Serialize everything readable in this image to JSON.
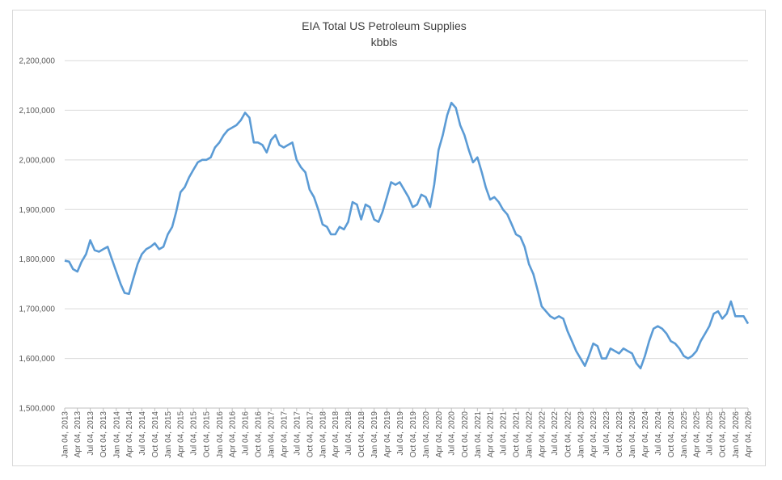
{
  "chart_data": {
    "type": "line",
    "title": "EIA Total US Petroleum Supplies",
    "subtitle": "kbbls",
    "x": [
      "Jan 04, 2013",
      "Feb 04, 2013",
      "Mar 04, 2013",
      "Apr 04, 2013",
      "May 04, 2013",
      "Jun 04, 2013",
      "Jul 04, 2013",
      "Aug 04, 2013",
      "Sep 04, 2013",
      "Oct 04, 2013",
      "Nov 04, 2013",
      "Dec 04, 2013",
      "Jan 04, 2014",
      "Feb 04, 2014",
      "Mar 04, 2014",
      "Apr 04, 2014",
      "May 04, 2014",
      "Jun 04, 2014",
      "Jul 04, 2014",
      "Aug 04, 2014",
      "Sep 04, 2014",
      "Oct 04, 2014",
      "Nov 04, 2014",
      "Dec 04, 2014",
      "Jan 04, 2015",
      "Feb 04, 2015",
      "Mar 04, 2015",
      "Apr 04, 2015",
      "May 04, 2015",
      "Jun 04, 2015",
      "Jul 04, 2015",
      "Aug 04, 2015",
      "Sep 04, 2015",
      "Oct 04, 2015",
      "Nov 04, 2015",
      "Dec 04, 2015",
      "Jan 04, 2016",
      "Feb 04, 2016",
      "Mar 04, 2016",
      "Apr 04, 2016",
      "May 04, 2016",
      "Jun 04, 2016",
      "Jul 04, 2016",
      "Aug 04, 2016",
      "Sep 04, 2016",
      "Oct 04, 2016",
      "Nov 04, 2016",
      "Dec 04, 2016",
      "Jan 04, 2017",
      "Feb 04, 2017",
      "Mar 04, 2017",
      "Apr 04, 2017",
      "May 04, 2017",
      "Jun 04, 2017",
      "Jul 04, 2017",
      "Aug 04, 2017",
      "Sep 04, 2017",
      "Oct 04, 2017",
      "Nov 04, 2017",
      "Dec 04, 2017",
      "Jan 04, 2018",
      "Feb 04, 2018",
      "Mar 04, 2018",
      "Apr 04, 2018",
      "May 04, 2018",
      "Jun 04, 2018",
      "Jul 04, 2018",
      "Aug 04, 2018",
      "Sep 04, 2018",
      "Oct 04, 2018",
      "Nov 04, 2018",
      "Dec 04, 2018",
      "Jan 04, 2019",
      "Feb 04, 2019",
      "Mar 04, 2019",
      "Apr 04, 2019",
      "May 04, 2019",
      "Jun 04, 2019",
      "Jul 04, 2019",
      "Aug 04, 2019",
      "Sep 04, 2019",
      "Oct 04, 2019",
      "Nov 04, 2019",
      "Dec 04, 2019",
      "Jan 04, 2020",
      "Feb 04, 2020",
      "Mar 04, 2020",
      "Apr 04, 2020",
      "May 04, 2020",
      "Jun 04, 2020",
      "Jul 04, 2020",
      "Aug 04, 2020",
      "Sep 04, 2020",
      "Oct 04, 2020",
      "Nov 04, 2020",
      "Dec 04, 2020",
      "Jan 04, 2021",
      "Feb 04, 2021",
      "Mar 04, 2021",
      "Apr 04, 2021",
      "May 04, 2021",
      "Jun 04, 2021",
      "Jul 04, 2021",
      "Aug 04, 2021",
      "Sep 04, 2021",
      "Oct 04, 2021",
      "Nov 04, 2021",
      "Dec 04, 2021",
      "Jan 04, 2022",
      "Feb 04, 2022",
      "Mar 04, 2022",
      "Apr 04, 2022",
      "May 04, 2022",
      "Jun 04, 2022",
      "Jul 04, 2022",
      "Aug 04, 2022",
      "Sep 04, 2022",
      "Oct 04, 2022",
      "Nov 04, 2022",
      "Dec 04, 2022",
      "Jan 04, 2023",
      "Feb 04, 2023",
      "Mar 04, 2023",
      "Apr 04, 2023",
      "May 04, 2023",
      "Jun 04, 2023",
      "Jul 04, 2023",
      "Aug 04, 2023",
      "Sep 04, 2023",
      "Oct 04, 2023",
      "Nov 04, 2023",
      "Dec 04, 2023",
      "Jan 04, 2024",
      "Feb 04, 2024",
      "Mar 04, 2024",
      "Apr 04, 2024",
      "May 04, 2024",
      "Jun 04, 2024",
      "Jul 04, 2024",
      "Aug 04, 2024",
      "Sep 04, 2024",
      "Oct 04, 2024",
      "Nov 04, 2024",
      "Dec 04, 2024",
      "Jan 04, 2025",
      "Feb 04, 2025",
      "Mar 04, 2025",
      "Apr 04, 2025",
      "May 04, 2025",
      "Jun 04, 2025",
      "Jul 04, 2025",
      "Aug 04, 2025",
      "Sep 04, 2025",
      "Oct 04, 2025",
      "Nov 04, 2025",
      "Dec 04, 2025",
      "Jan 04, 2026",
      "Feb 04, 2026",
      "Mar 04, 2026",
      "Apr 04, 2026"
    ],
    "series": [
      {
        "color": "#5b9bd5",
        "values": [
          1797000,
          1795000,
          1780000,
          1775000,
          1795000,
          1810000,
          1838000,
          1818000,
          1815000,
          1820000,
          1825000,
          1800000,
          1775000,
          1750000,
          1732000,
          1730000,
          1760000,
          1790000,
          1810000,
          1820000,
          1825000,
          1832000,
          1820000,
          1825000,
          1850000,
          1865000,
          1895000,
          1935000,
          1945000,
          1965000,
          1980000,
          1995000,
          2000000,
          2000000,
          2005000,
          2025000,
          2035000,
          2050000,
          2060000,
          2065000,
          2070000,
          2080000,
          2095000,
          2085000,
          2035000,
          2035000,
          2030000,
          2015000,
          2040000,
          2050000,
          2030000,
          2025000,
          2030000,
          2035000,
          2000000,
          1985000,
          1975000,
          1940000,
          1925000,
          1900000,
          1870000,
          1865000,
          1850000,
          1850000,
          1865000,
          1860000,
          1875000,
          1915000,
          1910000,
          1880000,
          1910000,
          1905000,
          1880000,
          1875000,
          1895000,
          1925000,
          1955000,
          1950000,
          1955000,
          1940000,
          1925000,
          1905000,
          1910000,
          1930000,
          1925000,
          1905000,
          1950000,
          2020000,
          2050000,
          2090000,
          2115000,
          2105000,
          2070000,
          2050000,
          2020000,
          1995000,
          2005000,
          1975000,
          1945000,
          1920000,
          1925000,
          1915000,
          1900000,
          1890000,
          1870000,
          1850000,
          1845000,
          1825000,
          1790000,
          1770000,
          1740000,
          1705000,
          1695000,
          1685000,
          1680000,
          1685000,
          1680000,
          1655000,
          1635000,
          1615000,
          1600000,
          1585000,
          1605000,
          1630000,
          1625000,
          1600000,
          1600000,
          1620000,
          1615000,
          1610000,
          1620000,
          1615000,
          1610000,
          1590000,
          1580000,
          1605000,
          1635000,
          1660000,
          1665000,
          1660000,
          1650000,
          1635000,
          1630000,
          1620000,
          1605000,
          1600000,
          1605000,
          1615000,
          1635000,
          1650000,
          1665000,
          1690000,
          1695000,
          1680000,
          1690000,
          1715000,
          1685000,
          1685000,
          1685000,
          1670000
        ]
      }
    ],
    "xlim": [
      "Jan 04, 2013",
      "Apr 04, 2026"
    ],
    "xticks": [
      "Jan 04, 2013",
      "Apr 04, 2013",
      "Jul 04, 2013",
      "Oct 04, 2013",
      "Jan 04, 2014",
      "Apr 04, 2014",
      "Jul 04, 2014",
      "Oct 04, 2014",
      "Jan 04, 2015",
      "Apr 04, 2015",
      "Jul 04, 2015",
      "Oct 04, 2015",
      "Jan 04, 2016",
      "Apr 04, 2016",
      "Jul 04, 2016",
      "Oct 04, 2016",
      "Jan 04, 2017",
      "Apr 04, 2017",
      "Jul 04, 2017",
      "Oct 04, 2017",
      "Jan 04, 2018",
      "Apr 04, 2018",
      "Jul 04, 2018",
      "Oct 04, 2018",
      "Jan 04, 2019",
      "Apr 04, 2019",
      "Jul 04, 2019",
      "Oct 04, 2019",
      "Jan 04, 2020",
      "Apr 04, 2020",
      "Jul 04, 2020",
      "Oct 04, 2020",
      "Jan 04, 2021",
      "Apr 04, 2021",
      "Jul 04, 2021",
      "Oct 04, 2021",
      "Jan 04, 2022",
      "Apr 04, 2022",
      "Jul 04, 2022",
      "Oct 04, 2022",
      "Jan 04, 2023",
      "Apr 04, 2023",
      "Jul 04, 2023",
      "Oct 04, 2023",
      "Jan 04, 2024",
      "Apr 04, 2024",
      "Jul 04, 2024",
      "Oct 04, 2024",
      "Jan 04, 2025",
      "Apr 04, 2025",
      "Jul 04, 2025",
      "Oct 04, 2025",
      "Jan 04, 2026",
      "Apr 04, 2026"
    ],
    "ylim": [
      1500000,
      2200000
    ],
    "yticks": [
      {
        "value": 1500000,
        "label": "1,500,000"
      },
      {
        "value": 1600000,
        "label": "1,600,000"
      },
      {
        "value": 1700000,
        "label": "1,700,000"
      },
      {
        "value": 1800000,
        "label": "1,800,000"
      },
      {
        "value": 1900000,
        "label": "1,900,000"
      },
      {
        "value": 2000000,
        "label": "2,000,000"
      },
      {
        "value": 2100000,
        "label": "2,100,000"
      },
      {
        "value": 2200000,
        "label": "2,200,000"
      }
    ],
    "grid": true
  }
}
